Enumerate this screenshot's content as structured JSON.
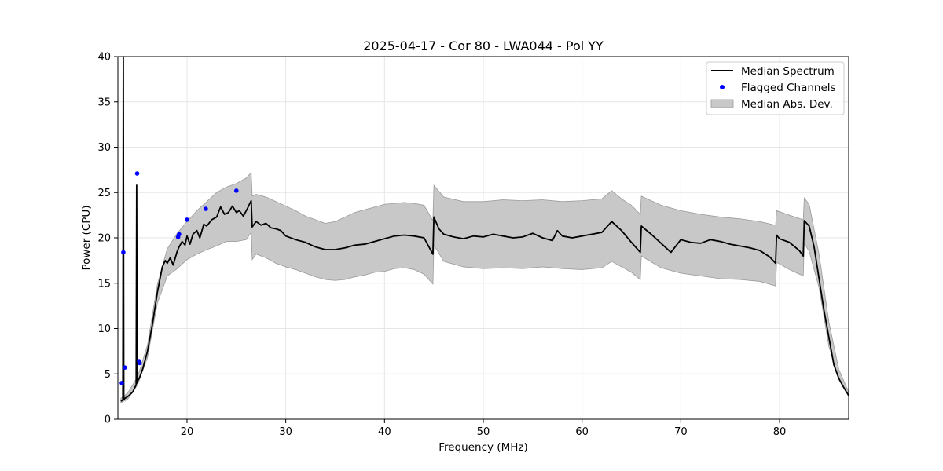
{
  "chart_data": {
    "type": "line",
    "title": "2025-04-17 - Cor 80 - LWA044 - Pol YY",
    "xlabel": "Frequency (MHz)",
    "ylabel": "Power (CPU)",
    "xlim": [
      13.0,
      87.0
    ],
    "ylim": [
      0,
      40
    ],
    "xticks": [
      20,
      30,
      40,
      50,
      60,
      70,
      80
    ],
    "yticks": [
      0,
      5,
      10,
      15,
      20,
      25,
      30,
      35,
      40
    ],
    "grid": true,
    "legend_position": "top-right",
    "series": [
      {
        "name": "Median Spectrum",
        "kind": "line",
        "color": "#000000",
        "x": [
          13.3,
          13.5,
          13.55,
          13.6,
          13.65,
          13.7,
          14.0,
          14.5,
          14.85,
          14.9,
          14.95,
          15.0,
          15.2,
          15.5,
          16.0,
          16.5,
          17.0,
          17.5,
          17.8,
          18.0,
          18.3,
          18.6,
          19.0,
          19.2,
          19.5,
          19.8,
          20.0,
          20.3,
          20.6,
          21.0,
          21.3,
          21.7,
          22.0,
          22.5,
          23.0,
          23.4,
          23.8,
          24.2,
          24.6,
          25.0,
          25.3,
          25.7,
          26.1,
          26.5,
          26.6,
          27.0,
          27.5,
          28.0,
          28.5,
          29.0,
          29.5,
          30.0,
          31.0,
          32.0,
          33.0,
          34.0,
          35.0,
          36.0,
          37.0,
          38.0,
          39.0,
          40.0,
          41.0,
          42.0,
          43.0,
          44.0,
          44.9,
          45.0,
          45.5,
          46.0,
          47.0,
          48.0,
          49.0,
          50.0,
          51.0,
          52.0,
          53.0,
          54.0,
          55.0,
          56.0,
          57.0,
          57.5,
          58.0,
          59.0,
          60.0,
          61.0,
          62.0,
          63.0,
          64.0,
          65.0,
          65.9,
          66.0,
          67.0,
          68.0,
          69.0,
          70.0,
          71.0,
          72.0,
          73.0,
          74.0,
          75.0,
          76.0,
          77.0,
          78.0,
          79.0,
          79.6,
          79.7,
          80.0,
          81.0,
          82.0,
          82.4,
          82.5,
          83.0,
          83.5,
          84.0,
          84.5,
          85.0,
          85.5,
          86.0,
          86.5,
          87.0
        ],
        "y": [
          2.0,
          2.1,
          40.0,
          2.2,
          2.2,
          2.3,
          2.5,
          3.0,
          3.8,
          25.8,
          4.0,
          4.2,
          4.6,
          5.5,
          7.5,
          10.5,
          14.0,
          16.8,
          17.5,
          17.2,
          17.8,
          17.0,
          18.5,
          19.0,
          19.6,
          19.2,
          20.2,
          19.3,
          20.4,
          20.8,
          20.0,
          21.5,
          21.3,
          22.0,
          22.3,
          23.4,
          22.6,
          22.8,
          23.5,
          22.8,
          23.0,
          22.4,
          23.2,
          24.1,
          21.2,
          21.8,
          21.4,
          21.6,
          21.1,
          21.0,
          20.8,
          20.2,
          19.8,
          19.5,
          19.0,
          18.7,
          18.7,
          18.9,
          19.2,
          19.3,
          19.6,
          19.9,
          20.2,
          20.3,
          20.2,
          20.0,
          18.2,
          22.3,
          21.0,
          20.4,
          20.1,
          19.9,
          20.2,
          20.1,
          20.4,
          20.2,
          20.0,
          20.1,
          20.5,
          20.0,
          19.7,
          20.8,
          20.2,
          20.0,
          20.2,
          20.4,
          20.6,
          21.8,
          20.8,
          19.5,
          18.4,
          21.3,
          20.4,
          19.4,
          18.4,
          19.8,
          19.5,
          19.4,
          19.8,
          19.6,
          19.3,
          19.1,
          18.9,
          18.6,
          17.9,
          17.2,
          20.3,
          19.9,
          19.5,
          18.6,
          18.0,
          21.9,
          21.3,
          19.0,
          15.5,
          12.0,
          9.0,
          6.0,
          4.5,
          3.5,
          2.6
        ]
      },
      {
        "name": "Median Abs. Dev.",
        "kind": "band",
        "color": "#c8c8c8",
        "x": [
          13.3,
          14.0,
          15.0,
          16.0,
          17.0,
          18.0,
          19.0,
          20.0,
          21.0,
          22.0,
          23.0,
          24.0,
          25.0,
          26.0,
          26.5,
          26.6,
          27.0,
          28.0,
          29.0,
          30.0,
          31.0,
          32.0,
          33.0,
          34.0,
          35.0,
          36.0,
          37.0,
          38.0,
          39.0,
          40.0,
          41.0,
          42.0,
          43.0,
          44.0,
          44.9,
          45.0,
          46.0,
          48.0,
          50.0,
          52.0,
          54.0,
          56.0,
          58.0,
          60.0,
          62.0,
          63.0,
          64.0,
          65.0,
          65.9,
          66.0,
          68.0,
          70.0,
          72.0,
          74.0,
          76.0,
          78.0,
          79.6,
          79.7,
          81.0,
          82.4,
          82.5,
          83.0,
          84.0,
          85.0,
          86.0,
          87.0
        ],
        "lower": [
          1.8,
          2.2,
          3.8,
          6.8,
          12.8,
          15.8,
          16.6,
          17.6,
          18.2,
          18.7,
          19.1,
          19.6,
          19.6,
          19.8,
          20.6,
          17.6,
          18.2,
          17.8,
          17.2,
          16.8,
          16.5,
          16.1,
          15.7,
          15.4,
          15.3,
          15.4,
          15.7,
          15.9,
          16.2,
          16.3,
          16.6,
          16.7,
          16.5,
          16.0,
          14.9,
          19.2,
          17.4,
          16.8,
          16.6,
          16.7,
          16.6,
          16.8,
          16.6,
          16.5,
          16.7,
          17.4,
          16.8,
          16.2,
          15.4,
          18.0,
          16.7,
          16.1,
          15.8,
          15.5,
          15.4,
          15.2,
          14.7,
          17.3,
          16.5,
          15.8,
          19.4,
          18.5,
          14.5,
          8.0,
          4.5,
          2.6
        ],
        "upper": [
          2.3,
          2.9,
          4.7,
          8.2,
          14.9,
          18.8,
          20.5,
          21.8,
          23.0,
          24.0,
          25.0,
          25.6,
          26.0,
          26.6,
          27.2,
          24.6,
          24.8,
          24.5,
          24.0,
          23.5,
          23.0,
          22.4,
          22.0,
          21.6,
          21.8,
          22.3,
          22.8,
          23.1,
          23.4,
          23.7,
          23.8,
          23.9,
          23.8,
          23.6,
          21.9,
          25.8,
          24.5,
          24.0,
          24.0,
          24.2,
          24.1,
          24.2,
          24.0,
          24.1,
          24.3,
          25.2,
          24.3,
          23.6,
          22.6,
          24.6,
          23.6,
          23.0,
          22.6,
          22.3,
          22.1,
          21.8,
          21.4,
          23.0,
          22.5,
          22.0,
          24.4,
          23.7,
          18.2,
          10.7,
          5.5,
          3.0
        ]
      },
      {
        "name": "Flagged Channels",
        "kind": "scatter",
        "color": "#0000ff",
        "x": [
          13.4,
          13.55,
          13.7,
          14.95,
          15.15,
          15.2,
          19.1,
          19.2,
          20.0,
          21.9,
          25.0
        ],
        "y": [
          4.0,
          18.4,
          5.7,
          27.1,
          6.4,
          6.2,
          20.1,
          20.4,
          22.0,
          23.2,
          25.2
        ]
      }
    ]
  }
}
